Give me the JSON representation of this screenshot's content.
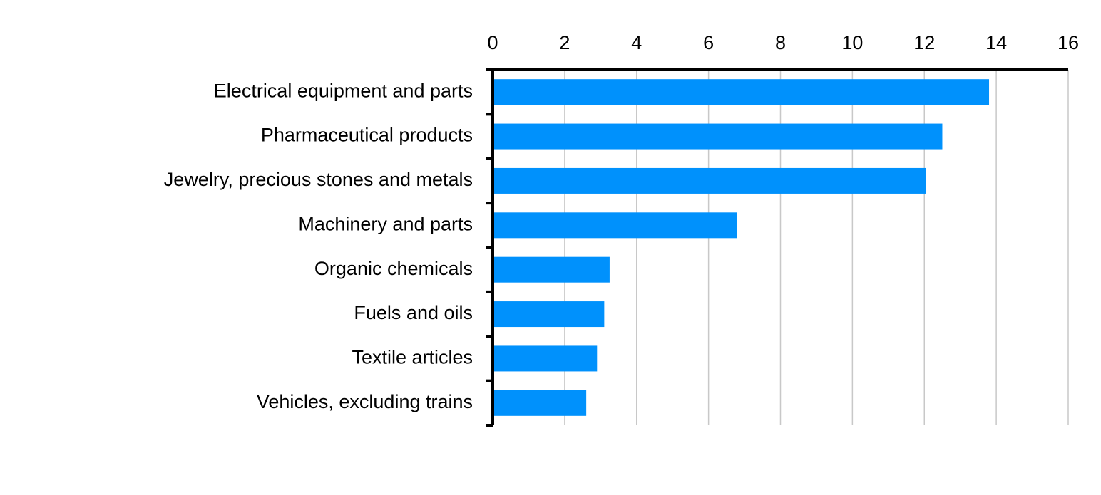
{
  "chart_data": {
    "type": "bar",
    "orientation": "horizontal",
    "categories": [
      "Electrical equipment and parts",
      "Pharmaceutical products",
      "Jewelry, precious stones and metals",
      "Machinery and parts",
      "Organic chemicals",
      "Fuels and oils",
      "Textile articles",
      "Vehicles, excluding trains"
    ],
    "values": [
      13.8,
      12.5,
      12.05,
      6.8,
      3.25,
      3.1,
      2.9,
      2.6
    ],
    "color": "#0091fc",
    "xlim": [
      0,
      16
    ],
    "xticks": [
      0,
      2,
      4,
      6,
      8,
      10,
      12,
      14,
      16
    ],
    "grid": true
  }
}
